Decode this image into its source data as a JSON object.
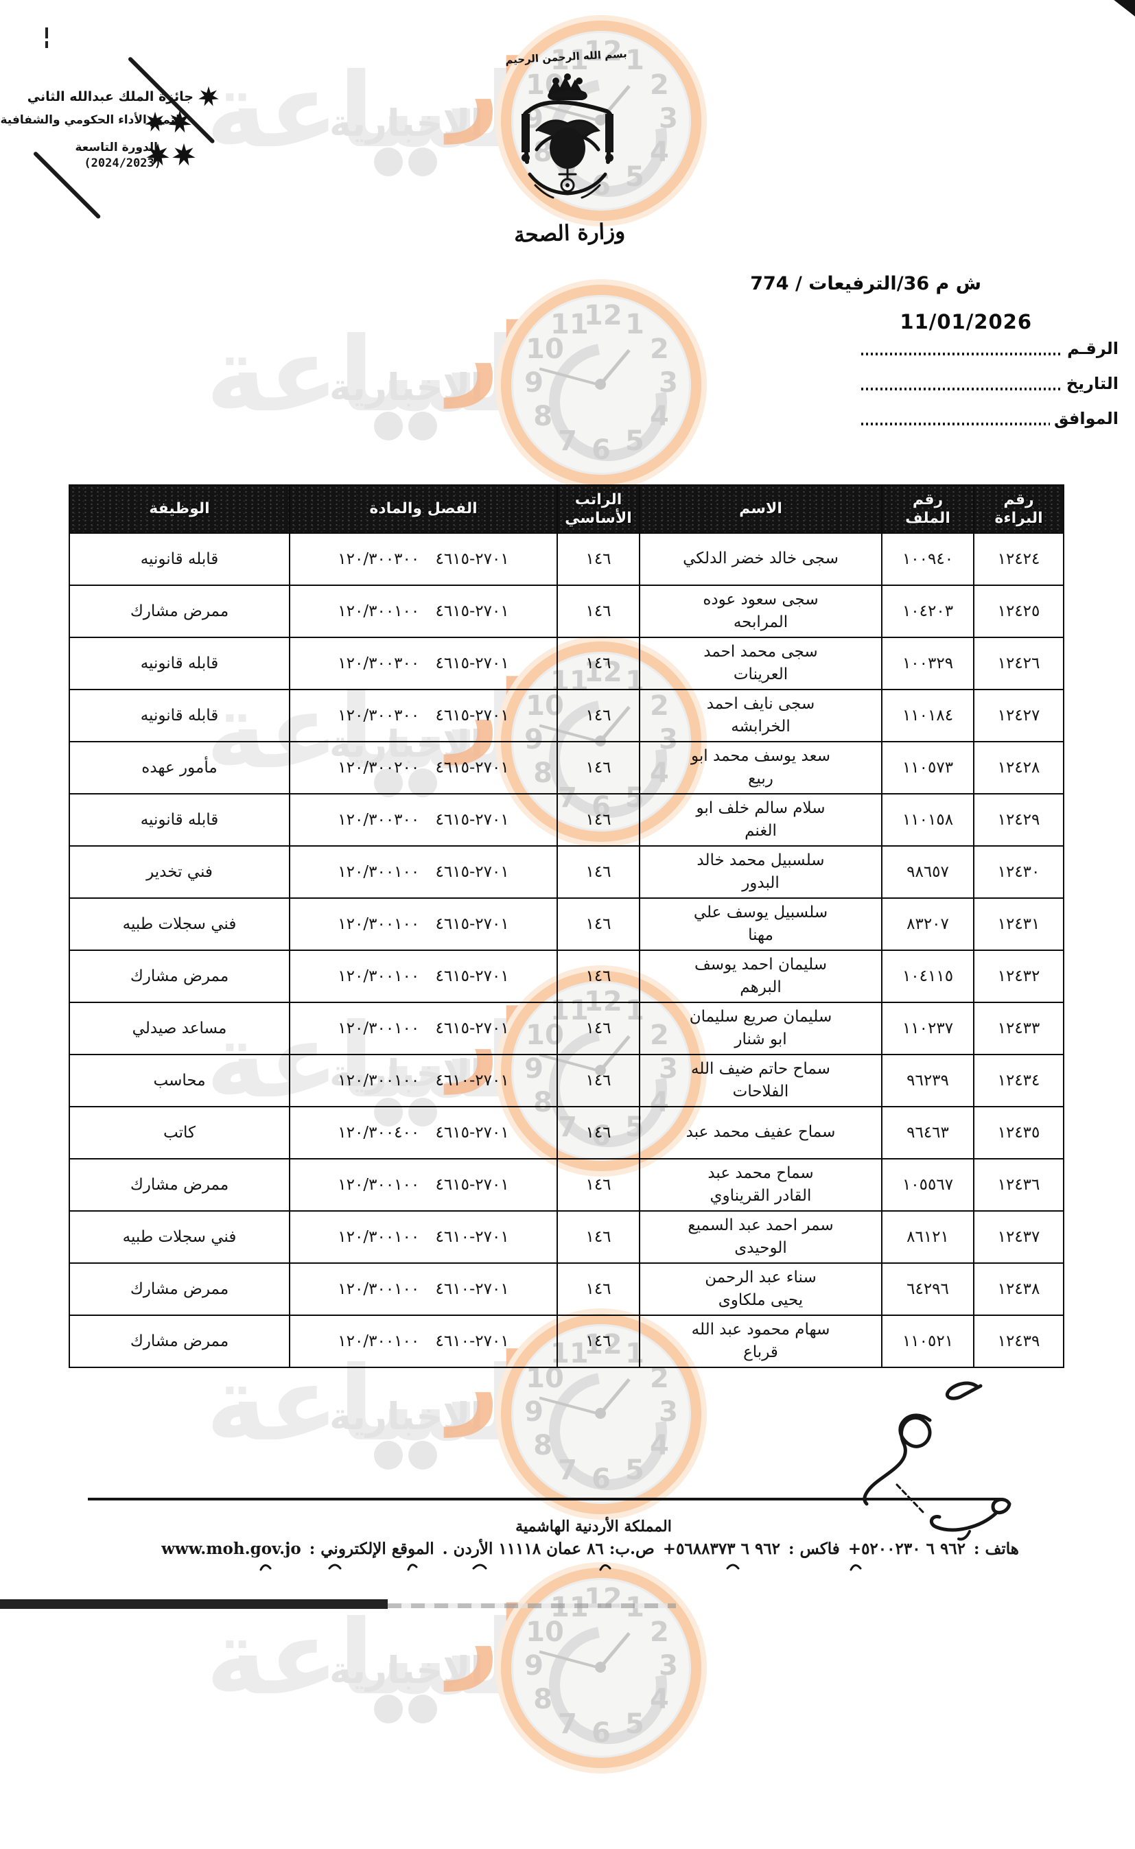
{
  "stamp": {
    "award": "جائزة الملك عبدالله الثاني",
    "award_line2": "لتميز الأداء الحكومي والشفافية",
    "session": "الدورة التاسعة",
    "years": "(2024/2023)"
  },
  "header": {
    "bismillah": "بسم الله الرحمن الرحيم",
    "ministry_name": "وزارة الصحة",
    "reference": "ش م 36/الترفيعات / 774",
    "date": "11/01/2026",
    "field_number": "الرقـم",
    "field_date": "التاريخ",
    "field_corresponding": "الموافق"
  },
  "watermark": {
    "brand": "مدار",
    "big_word": "الساعة",
    "news_word": "الإخبارية",
    "clock_numbers": [
      "12",
      "1",
      "2",
      "3",
      "4",
      "5",
      "6",
      "7",
      "8",
      "9",
      "10",
      "11"
    ]
  },
  "table": {
    "headers": [
      "رقم\nالبراءة",
      "رقم\nالملف",
      "الاسم",
      "الراتب\nالأساسي",
      "الفصل والمادة",
      "الوظيفة"
    ],
    "rows": [
      {
        "serial": "١٢٤٢٤",
        "file": "١٠٠٩٤٠",
        "name": "سجى خالد خضر الدلكي",
        "salary": "١٤٦",
        "allocation": "٢٧٠١-٤٦١٥ ١٢٠/٣٠٠٣٠٠",
        "job": "قابله قانونيه"
      },
      {
        "serial": "١٢٤٢٥",
        "file": "١٠٤٢٠٣",
        "name": "سجى سعود عوده\nالمرابحه",
        "salary": "١٤٦",
        "allocation": "٢٧٠١-٤٦١٥ ١٢٠/٣٠٠١٠٠",
        "job": "ممرض مشارك"
      },
      {
        "serial": "١٢٤٢٦",
        "file": "١٠٠٣٢٩",
        "name": "سجى محمد احمد\nالعرينات",
        "salary": "١٤٦",
        "allocation": "٢٧٠١-٤٦١٥ ١٢٠/٣٠٠٣٠٠",
        "job": "قابله قانونيه"
      },
      {
        "serial": "١٢٤٢٧",
        "file": "١١٠١٨٤",
        "name": "سجى نايف احمد\nالخرابشه",
        "salary": "١٤٦",
        "allocation": "٢٧٠١-٤٦١٥ ١٢٠/٣٠٠٣٠٠",
        "job": "قابله قانونيه"
      },
      {
        "serial": "١٢٤٢٨",
        "file": "١١٠٥٧٣",
        "name": "سعد يوسف محمد ابو\nربيع",
        "salary": "١٤٦",
        "allocation": "٢٧٠١-٤٦١٥ ١٢٠/٣٠٠٢٠٠",
        "job": "مأمور عهده"
      },
      {
        "serial": "١٢٤٢٩",
        "file": "١١٠١٥٨",
        "name": "سلام سالم خلف ابو\nالغنم",
        "salary": "١٤٦",
        "allocation": "٢٧٠١-٤٦١٥ ١٢٠/٣٠٠٣٠٠",
        "job": "قابله قانونيه"
      },
      {
        "serial": "١٢٤٣٠",
        "file": "٩٨٦٥٧",
        "name": "سلسبيل محمد خالد\nالبدور",
        "salary": "١٤٦",
        "allocation": "٢٧٠١-٤٦١٥ ١٢٠/٣٠٠١٠٠",
        "job": "فني تخدير"
      },
      {
        "serial": "١٢٤٣١",
        "file": "٨٣٢٠٧",
        "name": "سلسبيل يوسف علي\nمهنا",
        "salary": "١٤٦",
        "allocation": "٢٧٠١-٤٦١٥ ١٢٠/٣٠٠١٠٠",
        "job": "فني سجلات طبيه"
      },
      {
        "serial": "١٢٤٣٢",
        "file": "١٠٤١١٥",
        "name": "سليمان احمد يوسف\nالبرهم",
        "salary": "١٤٦",
        "allocation": "٢٧٠١-٤٦١٥ ١٢٠/٣٠٠١٠٠",
        "job": "ممرض مشارك"
      },
      {
        "serial": "١٢٤٣٣",
        "file": "١١٠٢٣٧",
        "name": "سليمان صريع سليمان\nابو شنار",
        "salary": "١٤٦",
        "allocation": "٢٧٠١-٤٦١٥ ١٢٠/٣٠٠١٠٠",
        "job": "مساعد صيدلي"
      },
      {
        "serial": "١٢٤٣٤",
        "file": "٩٦٢٣٩",
        "name": "سماح حاتم ضيف الله\nالفلاحات",
        "salary": "١٤٦",
        "allocation": "٢٧٠١-٤٦١٠ ١٢٠/٣٠٠١٠٠",
        "job": "محاسب"
      },
      {
        "serial": "١٢٤٣٥",
        "file": "٩٦٤٦٣",
        "name": "سماح عفيف محمد عبد",
        "salary": "١٤٦",
        "allocation": "٢٧٠١-٤٦١٥ ١٢٠/٣٠٠٤٠٠",
        "job": "كاتب"
      },
      {
        "serial": "١٢٤٣٦",
        "file": "١٠٥٥٦٧",
        "name": "سماح محمد عبد\nالقادر القريناوي",
        "salary": "١٤٦",
        "allocation": "٢٧٠١-٤٦١٥ ١٢٠/٣٠٠١٠٠",
        "job": "ممرض مشارك"
      },
      {
        "serial": "١٢٤٣٧",
        "file": "٨٦١٢١",
        "name": "سمر احمد عبد السميع\nالوحيدى",
        "salary": "١٤٦",
        "allocation": "٢٧٠١-٤٦١٠ ١٢٠/٣٠٠١٠٠",
        "job": "فني سجلات طبيه"
      },
      {
        "serial": "١٢٤٣٨",
        "file": "٦٤٢٩٦",
        "name": "سناء عبد الرحمن\nيحيى ملكاوى",
        "salary": "١٤٦",
        "allocation": "٢٧٠١-٤٦١٠ ١٢٠/٣٠٠١٠٠",
        "job": "ممرض مشارك"
      },
      {
        "serial": "١٢٤٣٩",
        "file": "١١٠٥٢١",
        "name": "سهام محمود عبد الله\nقرباع",
        "salary": "١٤٦",
        "allocation": "٢٧٠١-٤٦١٠ ١٢٠/٣٠٠١٠٠",
        "job": "ممرض مشارك"
      }
    ]
  },
  "footer": {
    "kingdom": "المملكة الأردنية الهاشمية",
    "phone_label": "هاتف :",
    "phone": "+٩٦٢ ٦ ٥٢٠٠٢٣٠",
    "fax_label": "فاكس :",
    "fax": "+٩٦٢ ٦ ٥٦٨٨٣٧٣",
    "pobox": "ص.ب: ٨٦ عمان ١١١١٨ الأردن .",
    "website_label": "الموقع الإلكتروني :",
    "website": "www.moh.gov.jo"
  }
}
